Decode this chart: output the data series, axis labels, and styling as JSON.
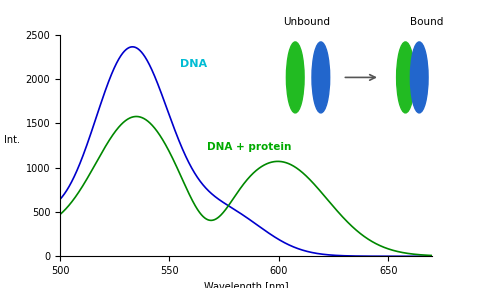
{
  "xlabel": "Wavelength [nm]",
  "ylabel": "Int.",
  "xlim": [
    500,
    670
  ],
  "ylim": [
    0,
    2500
  ],
  "yticks": [
    0,
    500,
    1000,
    1500,
    2000,
    2500
  ],
  "xticks": [
    500,
    550,
    600,
    650
  ],
  "blue_color": "#0000cc",
  "green_color": "#008800",
  "cyan_label_color": "#00bcd4",
  "green_label_color": "#00aa00",
  "background_color": "#ffffff",
  "label_DNA": "DNA",
  "label_DNA_protein": "DNA + protein",
  "label_unbound": "Unbound",
  "label_bound": "Bound",
  "ellipse_green_color": "#22bb22",
  "ellipse_blue_color": "#2266cc"
}
